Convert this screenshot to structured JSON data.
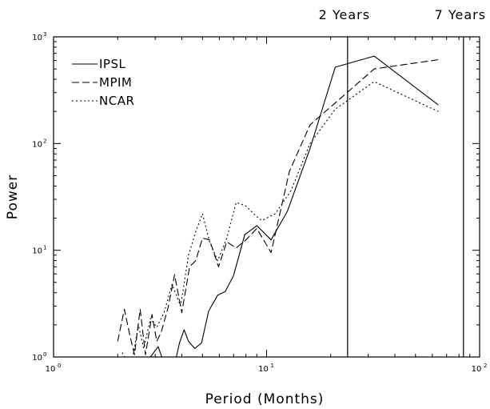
{
  "chart_data": {
    "type": "line",
    "title": "",
    "xlabel": "Period (Months)",
    "ylabel": "Power",
    "x_scale": "log",
    "y_scale": "log",
    "xlim": [
      1,
      100
    ],
    "ylim": [
      1,
      1000
    ],
    "grid": false,
    "legend_position": "top-left",
    "x_ticks": [
      {
        "base": "10",
        "exp": "0"
      },
      {
        "base": "10",
        "exp": "1"
      },
      {
        "base": "10",
        "exp": "2"
      }
    ],
    "y_ticks": [
      {
        "base": "10",
        "exp": "0"
      },
      {
        "base": "10",
        "exp": "1"
      },
      {
        "base": "10",
        "exp": "2"
      },
      {
        "base": "10",
        "exp": "3"
      }
    ],
    "reference_lines": [
      {
        "x": 24,
        "label": "2 Years"
      },
      {
        "x": 84,
        "label": "7 Years"
      }
    ],
    "series": [
      {
        "name": "IPSL",
        "style": "solid",
        "points": [
          [
            2.65,
            0.75
          ],
          [
            2.85,
            1.0
          ],
          [
            3.1,
            1.25
          ],
          [
            3.35,
            0.8
          ],
          [
            3.65,
            0.75
          ],
          [
            3.9,
            1.35
          ],
          [
            4.1,
            1.8
          ],
          [
            4.3,
            1.4
          ],
          [
            4.6,
            1.2
          ],
          [
            4.95,
            1.35
          ],
          [
            5.35,
            2.7
          ],
          [
            5.9,
            3.8
          ],
          [
            6.4,
            4.1
          ],
          [
            7.0,
            5.8
          ],
          [
            7.9,
            14.0
          ],
          [
            9.0,
            17.0
          ],
          [
            10.5,
            12.5
          ],
          [
            12.5,
            23.0
          ],
          [
            16.0,
            90.0
          ],
          [
            21.0,
            520.0
          ],
          [
            32.0,
            660.0
          ],
          [
            64.0,
            230.0
          ]
        ]
      },
      {
        "name": "MPIM",
        "style": "dashed",
        "points": [
          [
            2.0,
            1.4
          ],
          [
            2.15,
            2.8
          ],
          [
            2.28,
            1.6
          ],
          [
            2.4,
            1.05
          ],
          [
            2.55,
            2.8
          ],
          [
            2.7,
            1.05
          ],
          [
            2.9,
            2.5
          ],
          [
            3.05,
            1.4
          ],
          [
            3.2,
            1.7
          ],
          [
            3.45,
            2.9
          ],
          [
            3.7,
            5.9
          ],
          [
            4.0,
            2.6
          ],
          [
            4.35,
            7.0
          ],
          [
            4.65,
            8.0
          ],
          [
            5.0,
            13.0
          ],
          [
            5.4,
            12.5
          ],
          [
            5.95,
            7.0
          ],
          [
            6.5,
            12.0
          ],
          [
            7.2,
            10.5
          ],
          [
            8.0,
            12.5
          ],
          [
            9.0,
            16.0
          ],
          [
            10.5,
            9.5
          ],
          [
            12.8,
            55.0
          ],
          [
            16.0,
            150.0
          ],
          [
            21.0,
            240.0
          ],
          [
            32.0,
            500.0
          ],
          [
            64.0,
            610.0
          ]
        ]
      },
      {
        "name": "NCAR",
        "style": "dotted",
        "points": [
          [
            2.1,
            1.1
          ],
          [
            2.3,
            0.75
          ],
          [
            2.5,
            2.0
          ],
          [
            2.65,
            1.2
          ],
          [
            2.85,
            2.3
          ],
          [
            3.05,
            1.9
          ],
          [
            3.3,
            2.6
          ],
          [
            3.6,
            4.8
          ],
          [
            3.95,
            3.0
          ],
          [
            4.3,
            9.0
          ],
          [
            4.65,
            15.0
          ],
          [
            5.0,
            22.0
          ],
          [
            5.4,
            12.0
          ],
          [
            5.9,
            8.0
          ],
          [
            6.5,
            13.0
          ],
          [
            7.2,
            28.0
          ],
          [
            8.0,
            26.0
          ],
          [
            8.9,
            21.0
          ],
          [
            9.5,
            19.0
          ],
          [
            11.0,
            22.0
          ],
          [
            13.0,
            36.0
          ],
          [
            16.0,
            100.0
          ],
          [
            21.0,
            210.0
          ],
          [
            32.0,
            380.0
          ],
          [
            64.0,
            200.0
          ]
        ]
      }
    ]
  }
}
